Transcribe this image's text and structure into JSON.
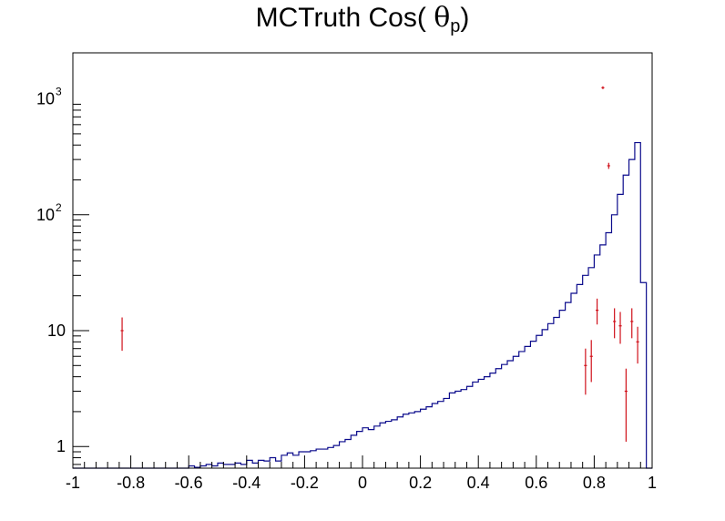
{
  "title_main": "MCTruth Cos(",
  "title_symbol": "θ",
  "title_sub": "p",
  "title_close": ")",
  "colors": {
    "mc_histogram": "#0b0b8c",
    "data_points": "#d0101a",
    "axes": "#000000"
  },
  "chart_data": {
    "type": "histogram",
    "xlim": [
      -1,
      1
    ],
    "ylim": [
      0.65,
      2500
    ],
    "y_scale": "log",
    "x_ticks": [
      "-1",
      "-0.8",
      "-0.6",
      "-0.4",
      "-0.2",
      "0",
      "0.2",
      "0.4",
      "0.6",
      "0.8",
      "1"
    ],
    "y_ticks": [
      {
        "value": 1,
        "base": "1",
        "exp": ""
      },
      {
        "value": 10,
        "base": "10",
        "exp": ""
      },
      {
        "value": 100,
        "base": "10",
        "exp": "2"
      },
      {
        "value": 1000,
        "base": "10",
        "exp": "3"
      }
    ],
    "grid": false,
    "legend": false,
    "series": [
      {
        "style": "step-histogram",
        "bin_width": 0.02,
        "x_start": -1,
        "values": [
          0.65,
          0.65,
          0.65,
          0.65,
          0.65,
          0.65,
          0.65,
          0.65,
          0.65,
          0.65,
          0.65,
          0.65,
          0.65,
          0.65,
          0.65,
          0.65,
          0.65,
          0.65,
          0.65,
          0.65,
          0.68,
          0.66,
          0.68,
          0.7,
          0.68,
          0.72,
          0.7,
          0.7,
          0.72,
          0.7,
          0.76,
          0.72,
          0.76,
          0.75,
          0.8,
          0.75,
          0.84,
          0.88,
          0.84,
          0.9,
          0.9,
          0.92,
          0.95,
          0.95,
          0.98,
          1.02,
          1.1,
          1.15,
          1.25,
          1.35,
          1.45,
          1.4,
          1.5,
          1.6,
          1.65,
          1.7,
          1.8,
          1.9,
          1.95,
          2.0,
          2.1,
          2.2,
          2.35,
          2.45,
          2.6,
          2.9,
          3.0,
          3.1,
          3.3,
          3.6,
          3.8,
          4.0,
          4.3,
          4.7,
          5.1,
          5.5,
          6.0,
          6.6,
          7.3,
          8.1,
          9.1,
          10.2,
          11.5,
          13.0,
          15.0,
          17.5,
          21.0,
          25.0,
          30.0,
          35.0,
          45.0,
          55.0,
          70.0,
          100.0,
          150.0,
          220.0,
          300.0,
          420.0,
          26.0,
          0.65
        ]
      },
      {
        "style": "points-with-errors",
        "points": [
          {
            "x": -0.83,
            "y": 10,
            "err_lo": 3.3,
            "err_hi": 3.0
          },
          {
            "x": 0.77,
            "y": 5,
            "err_lo": 2.2,
            "err_hi": 2.0
          },
          {
            "x": 0.79,
            "y": 6,
            "err_lo": 2.4,
            "err_hi": 2.3
          },
          {
            "x": 0.81,
            "y": 15,
            "err_lo": 3.7,
            "err_hi": 3.9
          },
          {
            "x": 0.83,
            "y": 1250,
            "err_lo": 35,
            "err_hi": 35
          },
          {
            "x": 0.85,
            "y": 265,
            "err_lo": 16,
            "err_hi": 16
          },
          {
            "x": 0.87,
            "y": 12,
            "err_lo": 3.4,
            "err_hi": 3.6
          },
          {
            "x": 0.89,
            "y": 11,
            "err_lo": 3.3,
            "err_hi": 3.5
          },
          {
            "x": 0.91,
            "y": 3,
            "err_lo": 1.9,
            "err_hi": 1.7
          },
          {
            "x": 0.93,
            "y": 12,
            "err_lo": 3.4,
            "err_hi": 3.6
          },
          {
            "x": 0.95,
            "y": 8,
            "err_lo": 2.8,
            "err_hi": 2.8
          }
        ]
      }
    ]
  }
}
